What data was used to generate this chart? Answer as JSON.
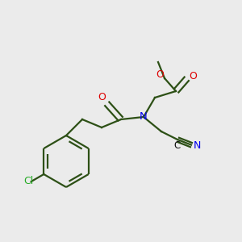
{
  "background_color": "#ebebeb",
  "bond_color": "#2d5016",
  "bond_lw": 1.6,
  "atom_colors": {
    "O": "#dd0000",
    "N": "#0000ee",
    "Cl": "#22aa22",
    "C": "#111111"
  },
  "figsize": [
    3.0,
    3.0
  ],
  "dpi": 100
}
